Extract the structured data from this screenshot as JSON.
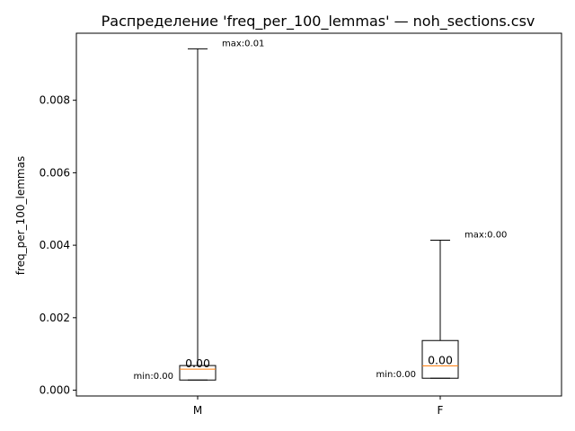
{
  "chart_data": {
    "type": "box",
    "title": "Распределение 'freq_per_100_lemmas' — noh_sections.csv",
    "xlabel": "",
    "ylabel": "freq_per_100_lemmas",
    "ylim": [
      -0.00016,
      0.00985
    ],
    "yticks": [
      0.0,
      0.002,
      0.004,
      0.006,
      0.008
    ],
    "ytick_labels": [
      "0.000",
      "0.002",
      "0.004",
      "0.006",
      "0.008"
    ],
    "categories": [
      "M",
      "F"
    ],
    "boxes": [
      {
        "category": "M",
        "whisker_low": 0.00028,
        "q1": 0.00028,
        "median": 0.00058,
        "q3": 0.00068,
        "whisker_high": 0.00942,
        "min_label": "min:0.00",
        "max_label": "max:0.01",
        "median_label": "0.00"
      },
      {
        "category": "F",
        "whisker_low": 0.00033,
        "q1": 0.00033,
        "median": 0.00067,
        "q3": 0.00137,
        "whisker_high": 0.00414,
        "min_label": "min:0.00",
        "max_label": "max:0.00",
        "median_label": "0.00"
      }
    ],
    "colors": {
      "box": "#000000",
      "median": "#ff7f0e"
    },
    "grid": false,
    "legend": "none"
  }
}
